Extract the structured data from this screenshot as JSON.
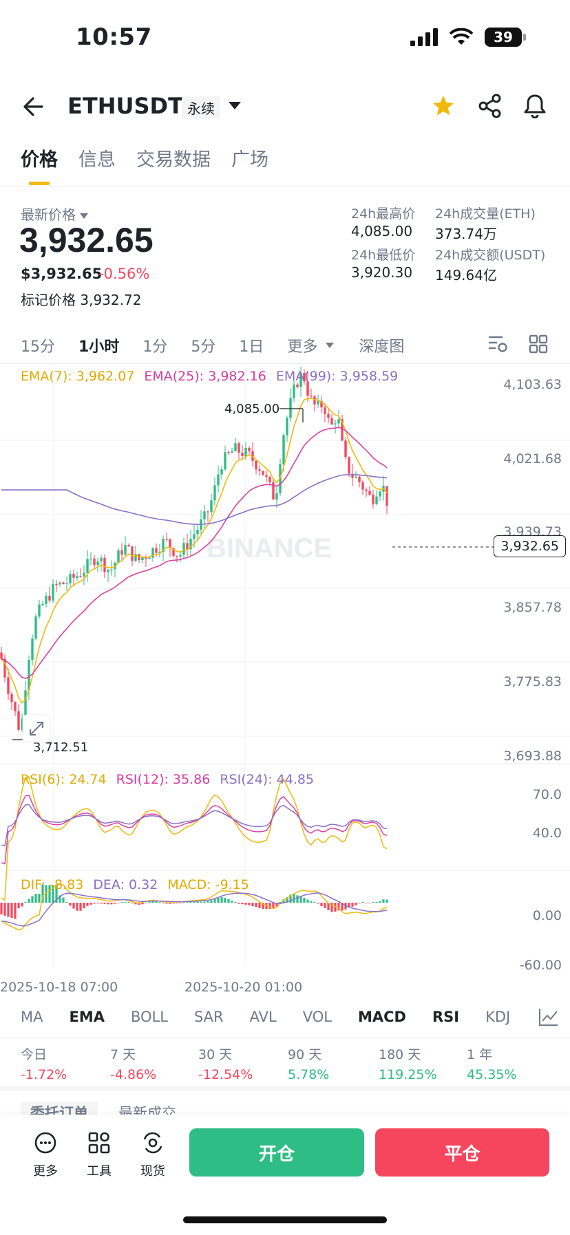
{
  "status_bar": {
    "time": "10:57",
    "battery": "39"
  },
  "header": {
    "symbol": "ETHUSDT",
    "contract_tag": "永续"
  },
  "tabs": [
    {
      "label": "价格"
    },
    {
      "label": "信息"
    },
    {
      "label": "交易数据"
    },
    {
      "label": "广场"
    }
  ],
  "price": {
    "latest_label": "最新价格",
    "latest": "3,932.65",
    "usd": "$3,932.65",
    "change": "-0.56%",
    "mark_label": "标记价格",
    "mark_value": "3,932.72"
  },
  "stats": {
    "high_label": "24h最高价",
    "high": "4,085.00",
    "low_label": "24h最低价",
    "low": "3,920.30",
    "vol_eth_label": "24h成交量(ETH)",
    "vol_eth": "373.74万",
    "vol_usdt_label": "24h成交额(USDT)",
    "vol_usdt": "149.64亿"
  },
  "intervals": [
    "15分",
    "1小时",
    "1分",
    "5分",
    "1日",
    "更多",
    "深度图"
  ],
  "active_interval": "1小时",
  "ema_legend": {
    "ema7": "EMA(7): 3,962.07",
    "ema25": "EMA(25): 3,982.16",
    "ema99": "EMA(99): 3,958.59"
  },
  "rsi_legend": {
    "rsi6": "RSI(6): 24.74",
    "rsi12": "RSI(12): 35.86",
    "rsi24": "RSI(24): 44.85"
  },
  "macd_legend": {
    "dif": "DIF: -8.83",
    "dea": "DEA: 0.32",
    "macd": "MACD: -9.15"
  },
  "chart_data": {
    "type": "candlestick",
    "price_axis_ticks": [
      "4,103.63",
      "4,021.68",
      "3,939.73",
      "3,857.78",
      "3,775.83",
      "3,693.88"
    ],
    "price_axis_range": [
      3693.88,
      4103.63
    ],
    "current_price_tag": "3,932.65",
    "high_marker": "4,085.00",
    "low_marker": "3,712.51",
    "rsi_axis_ticks": [
      "70.0",
      "40.0"
    ],
    "macd_axis_ticks": [
      "0.00",
      "-60.00"
    ],
    "x_tick_labels": [
      "2025-10-18 07:00",
      "2025-10-20 01:00"
    ],
    "watermark": "BINANCE",
    "colors": {
      "up": "#2ebd85",
      "down": "#f6465d",
      "ema7": "#f0b90b",
      "ema25": "#e040a0",
      "ema99": "#8a6fc4"
    }
  },
  "indicators": [
    "MA",
    "EMA",
    "BOLL",
    "SAR",
    "AVL",
    "VOL",
    "MACD",
    "RSI",
    "KDJ"
  ],
  "returns": [
    {
      "label": "今日",
      "value": "-1.72%",
      "dir": "neg"
    },
    {
      "label": "7 天",
      "value": "-4.86%",
      "dir": "neg"
    },
    {
      "label": "30 天",
      "value": "-12.54%",
      "dir": "neg"
    },
    {
      "label": "90 天",
      "value": "5.78%",
      "dir": "pos"
    },
    {
      "label": "180 天",
      "value": "119.25%",
      "dir": "pos"
    },
    {
      "label": "1 年",
      "value": "45.35%",
      "dir": "pos"
    }
  ],
  "order_tabs": [
    "委托订单",
    "最新成交"
  ],
  "bottom_bar": {
    "more": "更多",
    "tools": "工具",
    "spot": "现货",
    "open": "开仓",
    "close": "平仓"
  }
}
